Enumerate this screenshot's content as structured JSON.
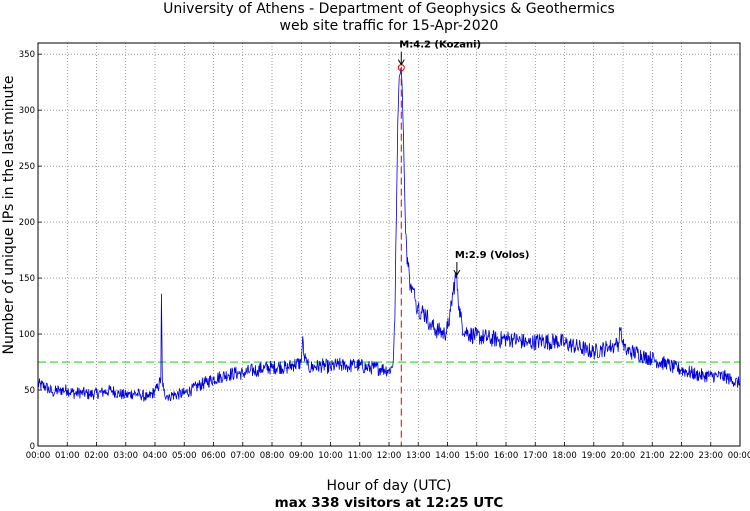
{
  "chart_data": {
    "type": "line",
    "title": "University of Athens - Department of Geophysics & Geothermics",
    "subtitle": "web site traffic for 15-Apr-2020",
    "xlabel": "Hour of day (UTC)",
    "ylabel": "Number of unique IPs in the last minute",
    "summary": "max 338 visitors at 12:25 UTC",
    "xlim": [
      0,
      24
    ],
    "ylim": [
      0,
      360
    ],
    "yticks": [
      0,
      50,
      100,
      150,
      200,
      250,
      300,
      350
    ],
    "xticks": [
      "00:00",
      "01:00",
      "02:00",
      "03:00",
      "04:00",
      "05:00",
      "06:00",
      "07:00",
      "08:00",
      "09:00",
      "10:00",
      "11:00",
      "12:00",
      "13:00",
      "14:00",
      "15:00",
      "16:00",
      "17:00",
      "18:00",
      "19:00",
      "20:00",
      "21:00",
      "22:00",
      "23:00",
      "00:00"
    ],
    "grid": true,
    "reference_line": {
      "value": 75,
      "color": "#22dd22",
      "style": "dashed"
    },
    "event_line": {
      "x": 12.42,
      "color": "#dd0000",
      "style": "dashed"
    },
    "max_marker": {
      "x": 12.42,
      "y": 338,
      "color": "#dd0000"
    },
    "annotations": [
      {
        "text": "M:4.2 (Kozani)",
        "x": 12.42,
        "y": 338
      },
      {
        "text": "M:2.9 (Volos)",
        "x": 14.32,
        "y": 150
      }
    ],
    "series": [
      {
        "name": "unique IPs",
        "color": "#0000dd",
        "x": [
          0,
          0.25,
          0.5,
          0.75,
          1,
          1.25,
          1.5,
          1.75,
          2,
          2.25,
          2.5,
          2.75,
          3,
          3.25,
          3.5,
          3.75,
          4,
          4.1,
          4.2,
          4.22,
          4.25,
          4.3,
          4.4,
          4.5,
          4.75,
          5,
          5.25,
          5.5,
          5.75,
          6,
          6.25,
          6.5,
          6.75,
          7,
          7.25,
          7.5,
          7.75,
          8,
          8.25,
          8.5,
          8.75,
          9,
          9.05,
          9.1,
          9.2,
          9.25,
          9.5,
          9.75,
          10,
          10.25,
          10.5,
          10.75,
          11,
          11.25,
          11.5,
          11.75,
          12,
          12.1,
          12.15,
          12.2,
          12.25,
          12.3,
          12.35,
          12.42,
          12.45,
          12.5,
          12.55,
          12.6,
          12.65,
          12.7,
          12.75,
          12.8,
          12.9,
          13,
          13.1,
          13.25,
          13.4,
          13.5,
          13.6,
          13.75,
          13.9,
          14,
          14.1,
          14.2,
          14.25,
          14.3,
          14.35,
          14.4,
          14.45,
          14.5,
          14.6,
          14.75,
          15,
          15.25,
          15.5,
          15.75,
          16,
          16.25,
          16.5,
          16.75,
          17,
          17.25,
          17.5,
          17.75,
          18,
          18.25,
          18.5,
          18.75,
          19,
          19.25,
          19.5,
          19.75,
          19.85,
          19.9,
          19.95,
          20,
          20.1,
          20.25,
          20.5,
          20.75,
          21,
          21.25,
          21.5,
          21.75,
          22,
          22.25,
          22.5,
          22.75,
          23,
          23.25,
          23.5,
          23.75,
          24
        ],
        "values": [
          55,
          53,
          48,
          50,
          50,
          47,
          48,
          46,
          47,
          48,
          50,
          47,
          45,
          47,
          46,
          43,
          49,
          52,
          60,
          136,
          60,
          49,
          45,
          45,
          46,
          47,
          50,
          54,
          57,
          60,
          62,
          64,
          65,
          65,
          67,
          68,
          70,
          70,
          71,
          70,
          73,
          74,
          98,
          80,
          72,
          70,
          71,
          72,
          70,
          73,
          71,
          72,
          72,
          70,
          70,
          69,
          68,
          70,
          78,
          112,
          200,
          290,
          330,
          338,
          320,
          270,
          210,
          180,
          160,
          150,
          145,
          140,
          130,
          125,
          120,
          118,
          110,
          106,
          104,
          102,
          100,
          105,
          120,
          140,
          148,
          150,
          140,
          125,
          115,
          108,
          103,
          100,
          98,
          97,
          96,
          95,
          96,
          95,
          94,
          92,
          93,
          94,
          93,
          94,
          92,
          90,
          88,
          86,
          84,
          86,
          88,
          90,
          92,
          104,
          96,
          90,
          86,
          84,
          83,
          80,
          78,
          75,
          73,
          70,
          68,
          66,
          64,
          63,
          63,
          62,
          62,
          58,
          56
        ]
      }
    ]
  }
}
